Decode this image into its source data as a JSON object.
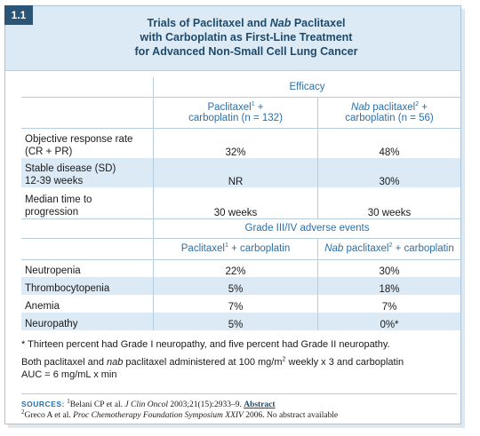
{
  "badge": "1.1",
  "title": {
    "line1_pre": "Trials of Paclitaxel and ",
    "line1_em": "Nab",
    "line1_post": " Paclitaxel",
    "line2": "with Carboplatin as First-Line Treatment",
    "line3": "for Advanced Non-Small Cell Lung Cancer"
  },
  "efficacy": {
    "header": "Efficacy",
    "col1": {
      "line1": "Paclitaxel",
      "sup": "1",
      "after": " +",
      "line2": "carboplatin (n = 132)"
    },
    "col2": {
      "em": "Nab",
      "line1": " paclitaxel",
      "sup": "2",
      "after": " +",
      "line2": "carboplatin (n = 56)"
    },
    "rows": [
      {
        "label1": "Objective response rate",
        "label2": "(CR + PR)",
        "v1": "32%",
        "v2": "48%"
      },
      {
        "label1": "Stable disease (SD)",
        "label2": "12-39 weeks",
        "v1": "NR",
        "v2": "30%"
      },
      {
        "label1": "Median time to",
        "label2": "progression",
        "v1": "30 weeks",
        "v2": "30 weeks"
      }
    ]
  },
  "adverse": {
    "header": "Grade III/IV adverse events",
    "col1": {
      "pre": "Paclitaxel",
      "sup": "1",
      "post": " + carboplatin"
    },
    "col2": {
      "em": "Nab",
      "pre": " paclitaxel",
      "sup": "2",
      "post": " + carboplatin"
    },
    "rows": [
      {
        "label": "Neutropenia",
        "v1": "22%",
        "v2": "30%"
      },
      {
        "label": "Thrombocytopenia",
        "v1": "5%",
        "v2": "18%"
      },
      {
        "label": "Anemia",
        "v1": "7%",
        "v2": "7%"
      },
      {
        "label": "Neuropathy",
        "v1": "5%",
        "v2": "0%*"
      }
    ]
  },
  "notes": {
    "footnote": "* Thirteen percent had Grade I neuropathy, and five percent had Grade II neuropathy.",
    "dosing_pre": "Both paclitaxel and ",
    "dosing_em": "nab",
    "dosing_mid": " paclitaxel administered at 100 mg/m",
    "dosing_sup": "2",
    "dosing_post": " weekly x 3 and carboplatin",
    "dosing_line2": "AUC = 6 mg/mL x min"
  },
  "sources": {
    "label": "SOURCES:",
    "s1_sup": "1",
    "s1_pre": "Belani CP et al. ",
    "s1_em": "J Clin Oncol",
    "s1_post": " 2003;21(15):2933–9. ",
    "s1_link": "Abstract",
    "s2_sup": "2",
    "s2_pre": "Greco A et al. ",
    "s2_em": "Proc Chemotherapy Foundation Symposium XXIV",
    "s2_post": " 2006. No abstract available"
  }
}
